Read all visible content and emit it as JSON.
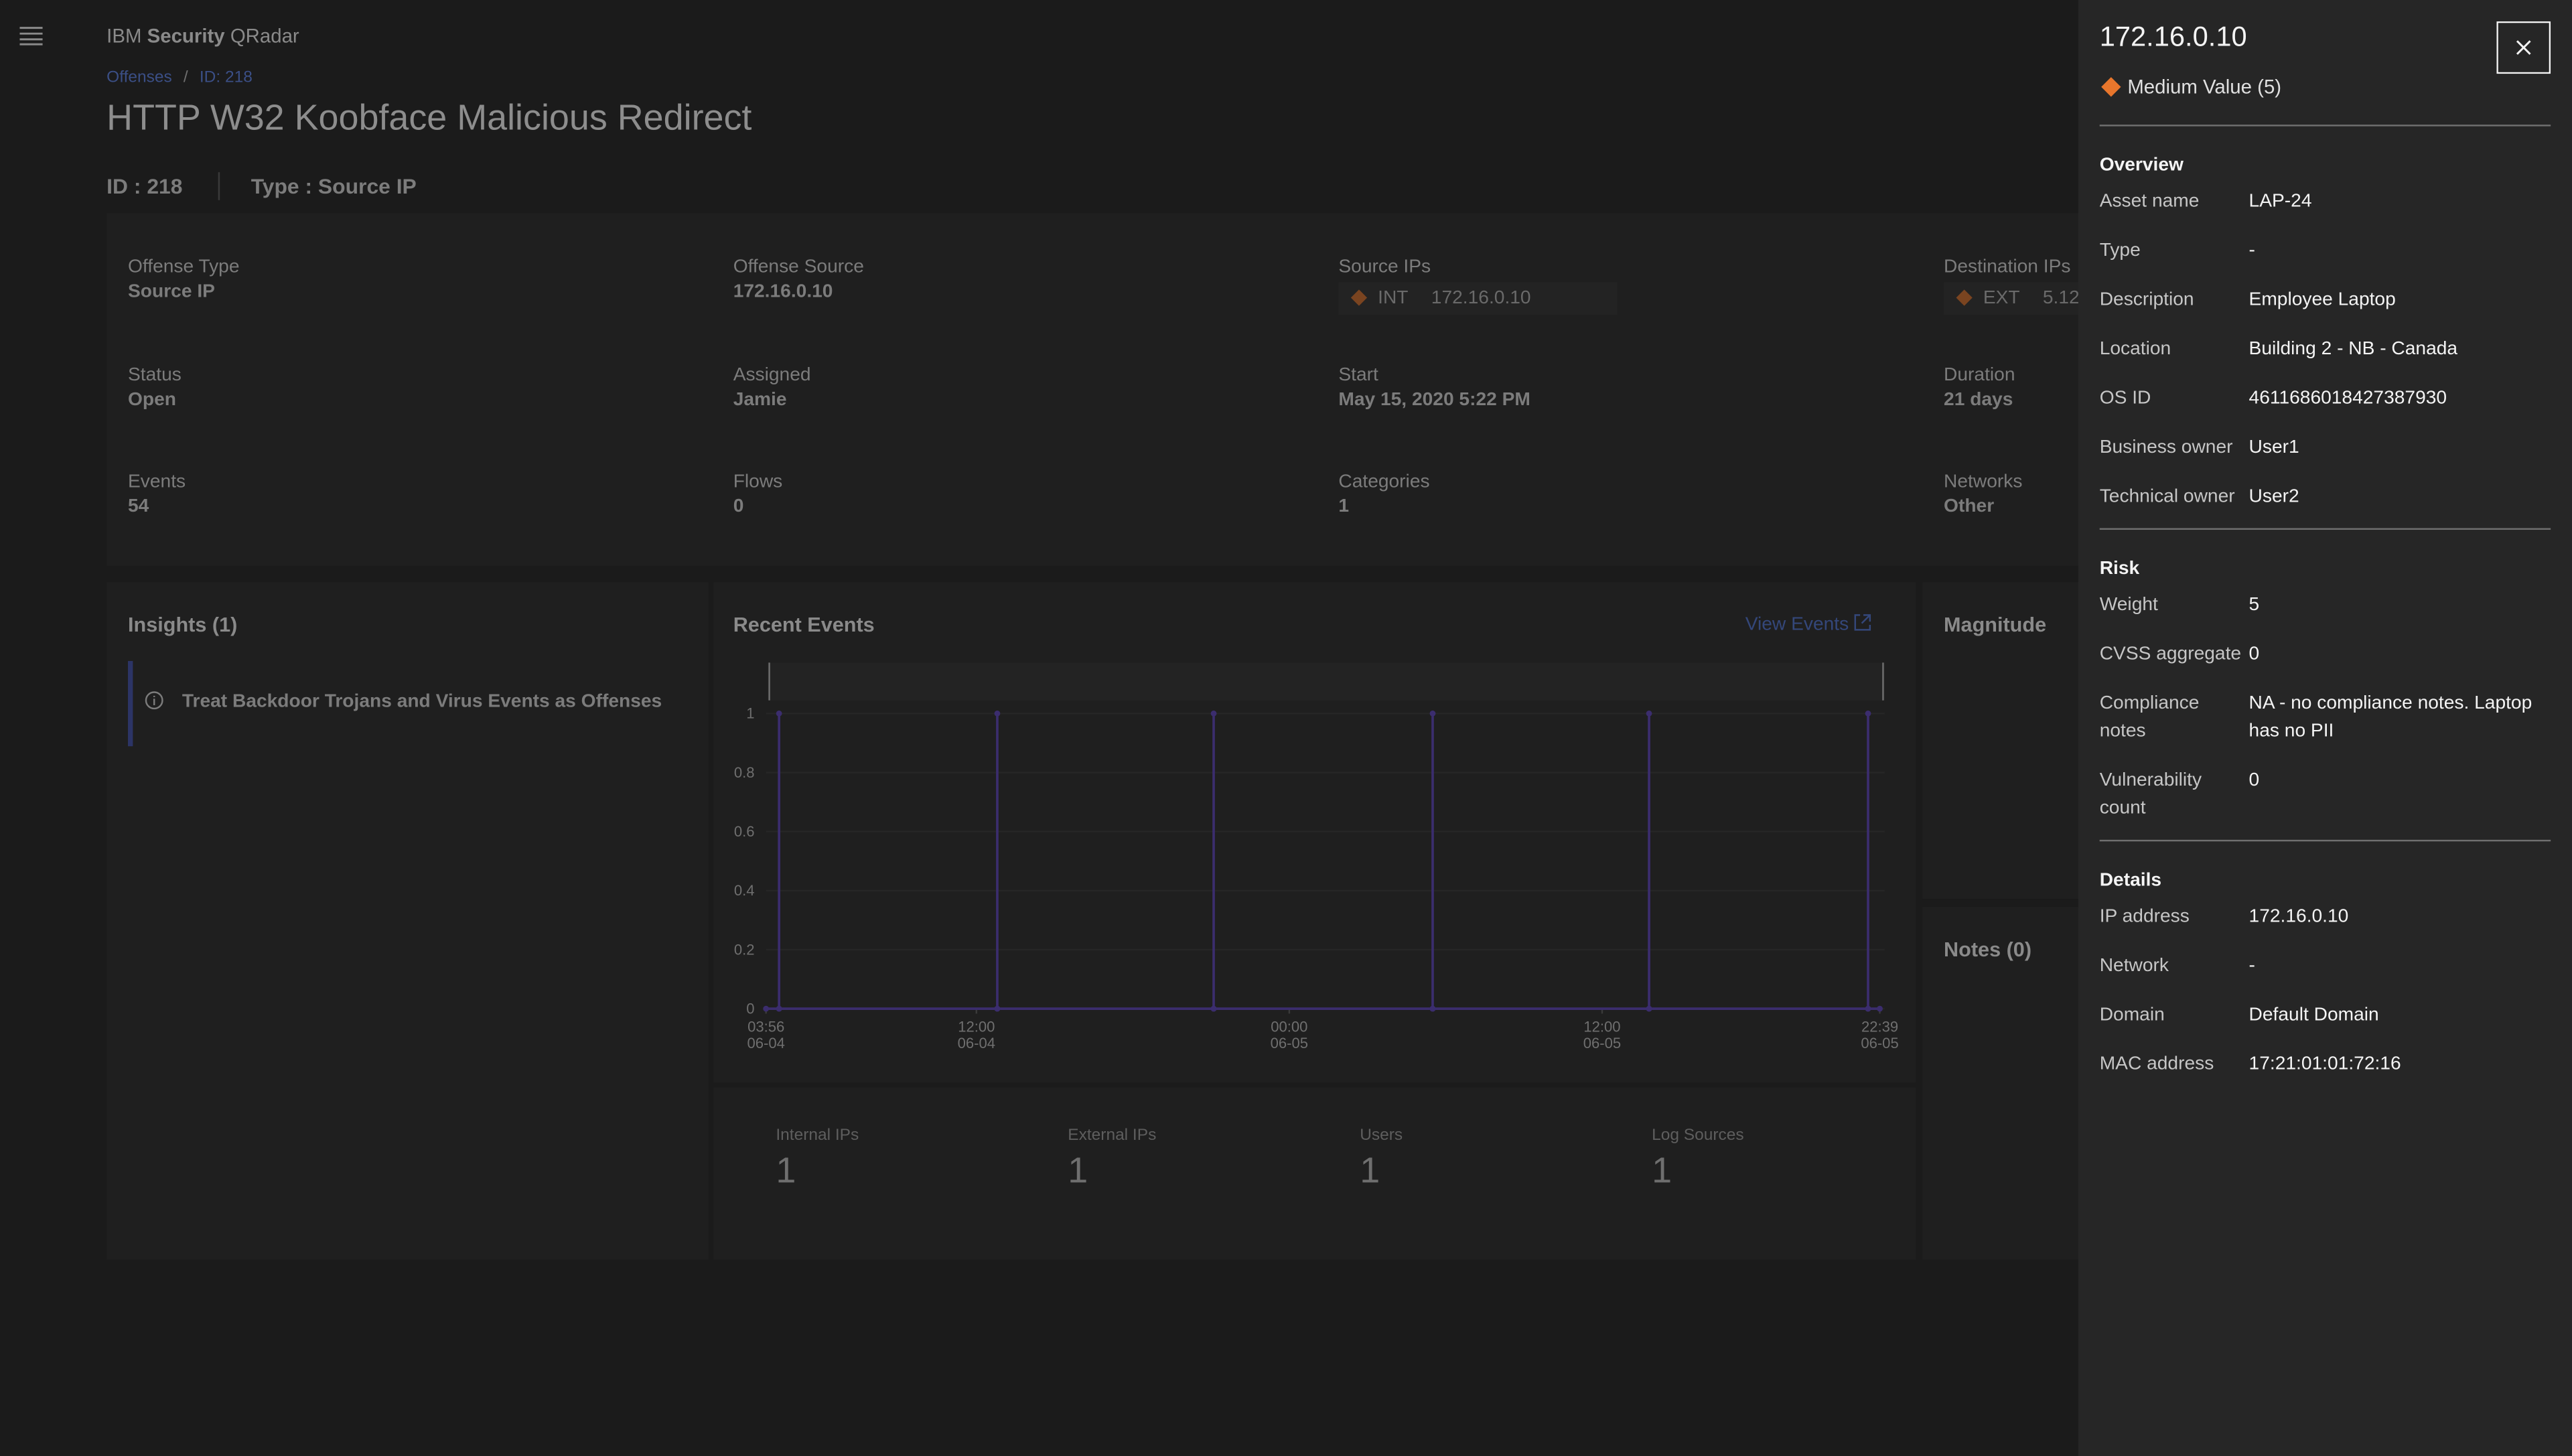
{
  "header": {
    "brand": [
      "IBM",
      "Security",
      "QRadar"
    ],
    "breadcrumb": [
      "Offenses",
      "ID: 218"
    ],
    "title": "HTTP W32 Koobface Malicious Redirect",
    "id": "ID : 218",
    "type": "Type : Source IP"
  },
  "summary": [
    {
      "label": "Offense Type",
      "value": "Source IP"
    },
    {
      "label": "Offense Source",
      "value": "172.16.0.10"
    },
    {
      "label": "Source IPs",
      "tag": "INT",
      "value": "172.16.0.10"
    },
    {
      "label": "Destination IPs",
      "tag": "EXT",
      "value": "5.12"
    },
    {
      "label": "Status",
      "value": "Open"
    },
    {
      "label": "Assigned",
      "value": "Jamie"
    },
    {
      "label": "Start",
      "value": "May 15, 2020 5:22 PM"
    },
    {
      "label": "Duration",
      "value": "21 days"
    },
    {
      "label": "Events",
      "value": "54"
    },
    {
      "label": "Flows",
      "value": "0"
    },
    {
      "label": "Categories",
      "value": "1"
    },
    {
      "label": "Networks",
      "value": "Other"
    }
  ],
  "insights": {
    "title": "Insights (1)",
    "items": [
      "Treat Backdoor Trojans and Virus Events as Offenses"
    ]
  },
  "recent_events": {
    "title": "Recent Events",
    "link": "View Events",
    "chart_data": {
      "type": "line",
      "color": "#3b2d6e",
      "x": [
        3.93,
        4.43,
        4.43,
        4.43,
        12.8,
        12.8,
        12.8,
        21.1,
        21.1,
        21.1,
        29.5,
        29.5,
        29.5,
        37.8,
        37.8,
        37.8,
        46.2,
        46.2,
        46.2,
        46.65
      ],
      "values": [
        0,
        0,
        1,
        0,
        0,
        1,
        0,
        0,
        1,
        0,
        0,
        1,
        0,
        0,
        1,
        0,
        0,
        1,
        0,
        0
      ],
      "xlim": [
        3.93,
        46.65
      ],
      "xticks": [
        {
          "value": 3.93,
          "label": "03:56\n06-04"
        },
        {
          "value": 12,
          "label": "12:00\n06-04"
        },
        {
          "value": 24,
          "label": "00:00\n06-05"
        },
        {
          "value": 36,
          "label": "12:00\n06-05"
        },
        {
          "value": 46.65,
          "label": "22:39\n06-05"
        }
      ],
      "ylim": [
        0,
        1
      ],
      "yticks": [
        0,
        0.2,
        0.4,
        0.6,
        0.8,
        1
      ],
      "grid": true
    },
    "stats": [
      {
        "label": "Internal IPs",
        "value": "1"
      },
      {
        "label": "External IPs",
        "value": "1"
      },
      {
        "label": "Users",
        "value": "1"
      },
      {
        "label": "Log Sources",
        "value": "1"
      }
    ]
  },
  "magnitude": {
    "title": "Magnitude"
  },
  "notes": {
    "title": "Notes (0)"
  },
  "panel": {
    "title": "172.16.0.10",
    "badge": "Medium Value (5)",
    "sections": [
      {
        "heading": "Overview",
        "rows": [
          [
            "Asset name",
            "LAP-24"
          ],
          [
            "Type",
            "-"
          ],
          [
            "Description",
            "Employee Laptop"
          ],
          [
            "Location",
            "Building 2 - NB - Canada"
          ],
          [
            "OS ID",
            "4611686018427387930"
          ],
          [
            "Business owner",
            "User1"
          ],
          [
            "Technical owner",
            "User2"
          ]
        ]
      },
      {
        "heading": "Risk",
        "rows": [
          [
            "Weight",
            "5"
          ],
          [
            "CVSS aggregate",
            "0"
          ],
          [
            "Compliance notes",
            "NA - no compliance notes. Laptop has no PII"
          ],
          [
            "Vulnerability count",
            "0"
          ]
        ]
      },
      {
        "heading": "Details",
        "rows": [
          [
            "IP address",
            "172.16.0.10"
          ],
          [
            "Network",
            "-"
          ],
          [
            "Domain",
            "Default Domain"
          ],
          [
            "MAC address",
            "17:21:01:01:72:16"
          ]
        ]
      }
    ]
  }
}
